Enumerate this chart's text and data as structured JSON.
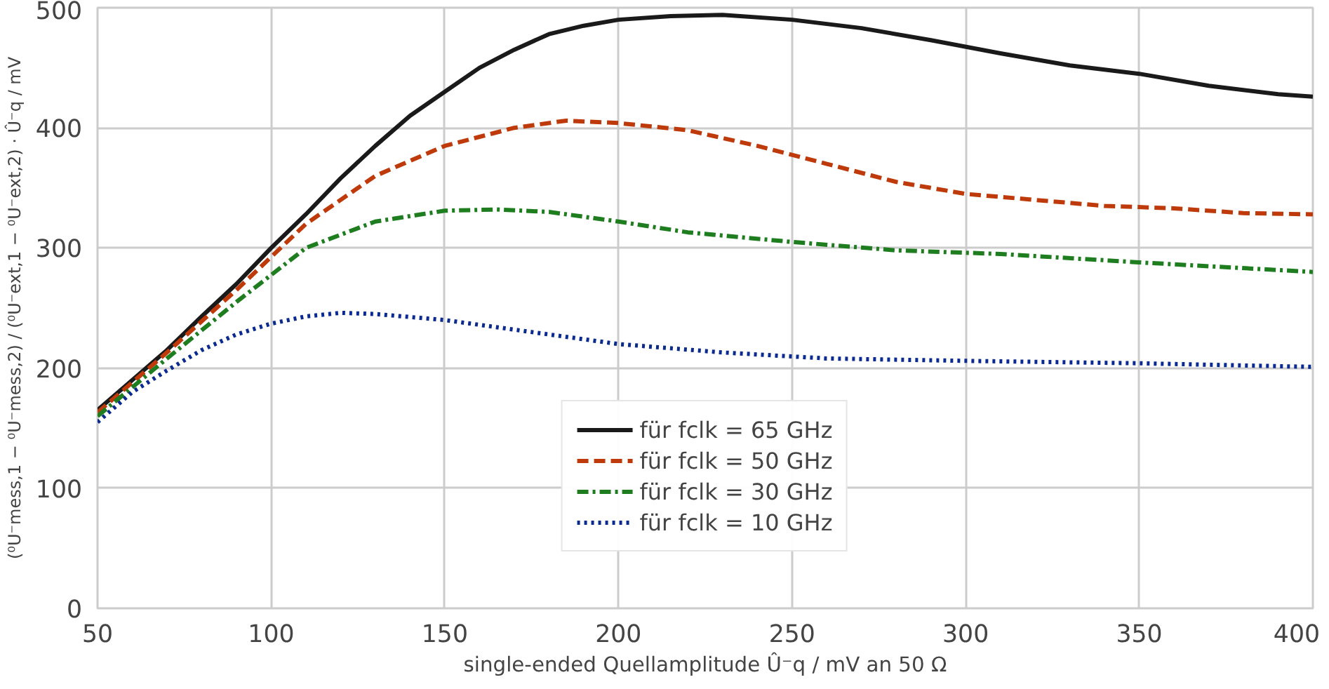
{
  "chart_data": {
    "type": "line",
    "xlabel": "single-ended Quellamplitude Û⁻q / mV an 50 Ω",
    "ylabel": "(⁰U⁻mess,1 − ⁰U⁻mess,2) / (⁰U⁻ext,1 − ⁰U⁻ext,2) · Û⁻q / mV",
    "xlim": [
      50,
      400
    ],
    "ylim": [
      0,
      500
    ],
    "xticks": [
      50,
      100,
      150,
      200,
      250,
      300,
      350,
      400
    ],
    "yticks": [
      0,
      100,
      200,
      300,
      400,
      500
    ],
    "grid": true,
    "legend": "bottom",
    "marker": "none",
    "series": [
      {
        "name": "für fclk = 65 GHz",
        "color": "#1a1a1a",
        "line_style": "solid",
        "x": [
          50,
          60,
          70,
          80,
          90,
          100,
          110,
          120,
          130,
          140,
          150,
          160,
          170,
          180,
          190,
          200,
          215,
          230,
          250,
          270,
          290,
          310,
          330,
          350,
          370,
          390,
          400
        ],
        "values": [
          165,
          190,
          215,
          243,
          270,
          300,
          328,
          358,
          385,
          410,
          430,
          450,
          465,
          478,
          485,
          490,
          493,
          494,
          490,
          483,
          473,
          462,
          452,
          445,
          435,
          428,
          426
        ]
      },
      {
        "name": "für fclk = 50 GHz",
        "color": "#bf3a0a",
        "line_style": "dashed",
        "x": [
          50,
          70,
          90,
          110,
          130,
          150,
          170,
          185,
          200,
          220,
          240,
          260,
          280,
          300,
          320,
          340,
          360,
          380,
          400
        ],
        "values": [
          163,
          213,
          265,
          320,
          360,
          385,
          400,
          406,
          404,
          398,
          385,
          370,
          355,
          345,
          340,
          335,
          333,
          329,
          328
        ]
      },
      {
        "name": "für fclk = 30 GHz",
        "color": "#1e7d1e",
        "line_style": "dashdot",
        "x": [
          50,
          70,
          90,
          110,
          130,
          150,
          165,
          180,
          200,
          220,
          250,
          280,
          310,
          350,
          400
        ],
        "values": [
          160,
          208,
          255,
          300,
          322,
          331,
          332,
          330,
          322,
          313,
          305,
          298,
          295,
          288,
          280
        ]
      },
      {
        "name": "für fclk = 10 GHz",
        "color": "#0b2a8f",
        "line_style": "dotted",
        "x": [
          50,
          60,
          70,
          80,
          90,
          100,
          110,
          120,
          130,
          150,
          170,
          200,
          230,
          260,
          300,
          350,
          400
        ],
        "values": [
          155,
          180,
          198,
          215,
          228,
          237,
          243,
          246,
          245,
          240,
          232,
          220,
          213,
          208,
          206,
          204,
          201
        ]
      }
    ]
  }
}
